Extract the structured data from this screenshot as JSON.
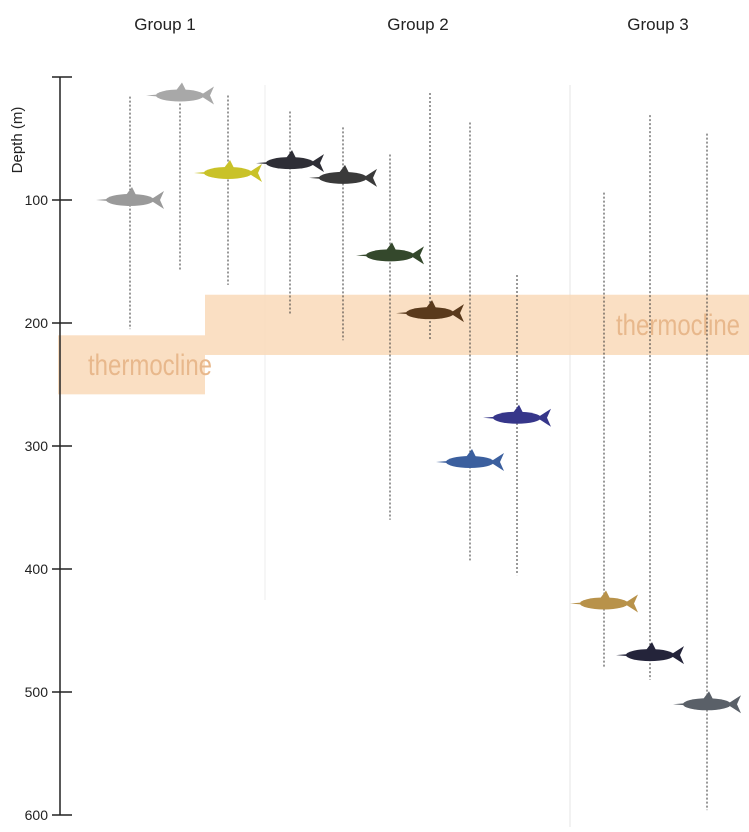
{
  "chart_data": {
    "type": "depth-ranges",
    "y_label": "Depth (m)",
    "ylim": [
      0,
      600
    ],
    "yticks": [
      100,
      200,
      300,
      400,
      500,
      600
    ],
    "thermoclines": [
      {
        "label": "thermocline",
        "depth": [
          210,
          258
        ]
      },
      {
        "label": "thermocline",
        "depth": [
          177,
          226
        ]
      }
    ],
    "series": [
      {
        "name": "Group 1",
        "species": [
          {
            "range": [
              16,
              205
            ],
            "fish": 100,
            "color": "#9a9a9a"
          },
          {
            "range": [
              15,
              157
            ],
            "fish": 15,
            "color": "#a8a8a8"
          },
          {
            "range": [
              15,
              169
            ],
            "fish": 78,
            "color": "#c9c228"
          }
        ]
      },
      {
        "name": "Group 2",
        "species": [
          {
            "range": [
              28,
              193
            ],
            "fish": 70,
            "color": "#2e2e36"
          },
          {
            "range": [
              41,
              214
            ],
            "fish": 82,
            "color": "#3a3a3a"
          },
          {
            "range": [
              63,
              360
            ],
            "fish": 145,
            "color": "#34482c"
          },
          {
            "range": [
              13,
              214
            ],
            "fish": 192,
            "color": "#5a3a1c"
          },
          {
            "range": [
              37,
              393
            ],
            "fish": 313,
            "color": "#3b5f9e"
          },
          {
            "range": [
              161,
              405
            ],
            "fish": 277,
            "color": "#36368a"
          }
        ]
      },
      {
        "name": "Group 3",
        "species": [
          {
            "range": [
              94,
              480
            ],
            "fish": 428,
            "color": "#b8924a"
          },
          {
            "range": [
              31,
              490
            ],
            "fish": 470,
            "color": "#24243a"
          },
          {
            "range": [
              46,
              596
            ],
            "fish": 510,
            "color": "#5a6068"
          }
        ]
      }
    ]
  }
}
